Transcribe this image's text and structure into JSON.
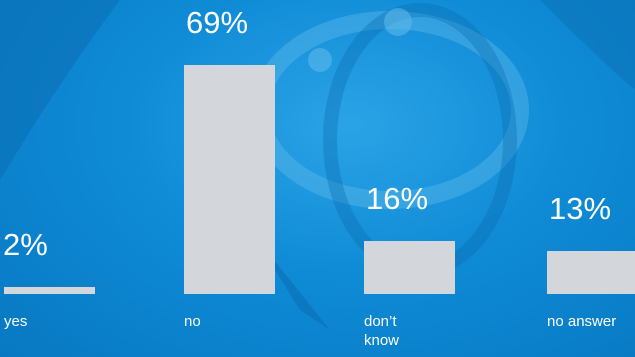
{
  "chart_data": {
    "type": "bar",
    "categories": [
      "yes",
      "no",
      "don’t know",
      "no answer"
    ],
    "values": [
      2,
      69,
      16,
      13
    ],
    "value_labels": [
      "2%",
      "69%",
      "16%",
      "13%"
    ],
    "color": "#d3d6da"
  }
}
